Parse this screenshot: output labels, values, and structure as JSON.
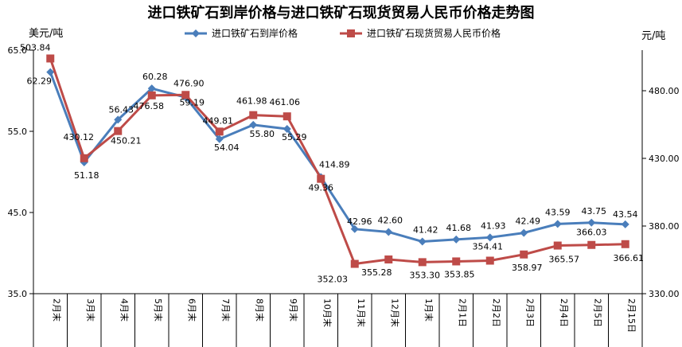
{
  "chart_data": {
    "type": "line",
    "title": "进口铁矿石到岸价格与进口铁矿石现货贸易人民币价格走势图",
    "left_unit": "美元/吨",
    "right_unit": "元/吨",
    "categories": [
      "2月末",
      "3月末",
      "4月末",
      "5月末",
      "6月末",
      "7月末",
      "8月末",
      "9月末",
      "10月末",
      "11月末",
      "12月末",
      "1月末",
      "2月1日",
      "2月2日",
      "2月3日",
      "2月4日",
      "2月5日",
      "2月15日"
    ],
    "left_axis": {
      "min": 35,
      "max": 65,
      "ticks": [
        "35.0",
        "45.0",
        "55.0",
        "65.0"
      ]
    },
    "right_axis": {
      "min": 330,
      "max": 510,
      "ticks": [
        "330.00",
        "380.00",
        "430.00",
        "480.00"
      ]
    },
    "grid": false,
    "legend_position": "top",
    "series": [
      {
        "name": "进口铁矿石到岸价格",
        "axis": "left",
        "color": "#4a7ebb",
        "marker": "diamond",
        "values": [
          62.29,
          51.18,
          56.43,
          60.28,
          59.19,
          54.04,
          55.8,
          55.29,
          49.36,
          42.96,
          42.6,
          41.42,
          41.68,
          41.93,
          42.49,
          43.59,
          43.75,
          43.54
        ],
        "labels": [
          "62.29",
          "51.18",
          "56.43",
          "60.28",
          "59.19",
          "54.04",
          "55.80",
          "55.29",
          "49.36",
          "42.96",
          "42.60",
          "41.42",
          "41.68",
          "41.93",
          "42.49",
          "43.59",
          "43.75",
          "43.54"
        ]
      },
      {
        "name": "进口铁矿石现货贸易人民币价格",
        "axis": "right",
        "color": "#be4b48",
        "marker": "square",
        "values": [
          503.84,
          430.12,
          450.21,
          476.58,
          476.9,
          449.81,
          461.98,
          461.06,
          414.89,
          352.03,
          355.28,
          353.3,
          353.85,
          354.41,
          358.97,
          365.57,
          366.03,
          366.61
        ],
        "labels": [
          "503.84",
          "430.12",
          "450.21",
          "476.58",
          "476.90",
          "449.81",
          "461.98",
          "461.06",
          "414.89",
          "352.03",
          "355.28",
          "353.30",
          "353.85",
          "354.41",
          "358.97",
          "365.57",
          "366.03",
          "366.61"
        ]
      }
    ]
  }
}
